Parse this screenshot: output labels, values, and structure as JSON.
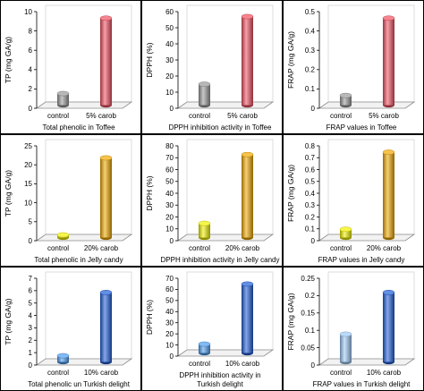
{
  "chart_data": [
    {
      "type": "bar",
      "title": "Total phenolic in Toffee",
      "ylabel": "TP (mg GA/g)",
      "categories": [
        "control",
        "5% carob"
      ],
      "values": [
        1.2,
        9.0
      ],
      "ylim": [
        0,
        10
      ],
      "yticks": [
        0,
        2,
        4,
        6,
        8,
        10
      ],
      "colors": [
        "#9a9a9a",
        "#f05060"
      ],
      "caption": [
        "Total phenolic in Toffee"
      ]
    },
    {
      "type": "bar",
      "title": "DPPH inhibition activity in Toffee",
      "ylabel": "DPPH (%)",
      "categories": [
        "control",
        "5% carob"
      ],
      "values": [
        13,
        55
      ],
      "ylim": [
        0,
        60
      ],
      "yticks": [
        0,
        10,
        20,
        30,
        40,
        50,
        60
      ],
      "colors": [
        "#9a9a9a",
        "#f05060"
      ],
      "caption": [
        "DPPH inhibition activity in Toffee"
      ]
    },
    {
      "type": "bar",
      "title": "FRAP values in Toffee",
      "ylabel": "FRAP (mg GA/g)",
      "categories": [
        "control",
        "5% carob"
      ],
      "values": [
        0.05,
        0.45
      ],
      "ylim": [
        0,
        0.5
      ],
      "yticks": [
        0,
        0.1,
        0.2,
        0.3,
        0.4,
        0.5
      ],
      "colors": [
        "#9a9a9a",
        "#f05060"
      ],
      "caption": [
        "FRAP values in Toffee"
      ]
    },
    {
      "type": "bar",
      "title": "Total phenolic in Jelly candy",
      "ylabel": "TP (mg GA/g)",
      "categories": [
        "control",
        "20% carob"
      ],
      "values": [
        0.7,
        21
      ],
      "ylim": [
        0,
        25
      ],
      "yticks": [
        0,
        5,
        10,
        15,
        20,
        25
      ],
      "colors": [
        "#f0f000",
        "#f0a800"
      ],
      "caption": [
        "Total phenolic in Jelly candy"
      ]
    },
    {
      "type": "bar",
      "title": "DPPH inhibition activity in Jelly candy",
      "ylabel": "DPPH (%)",
      "categories": [
        "control",
        "20% carob"
      ],
      "values": [
        12,
        70
      ],
      "ylim": [
        0,
        80
      ],
      "yticks": [
        0,
        10,
        20,
        30,
        40,
        50,
        60,
        70,
        80
      ],
      "colors": [
        "#f0f000",
        "#f0a800"
      ],
      "caption": [
        "DPPH inhibition activity in Jelly candy"
      ]
    },
    {
      "type": "bar",
      "title": "FRAP values in Jelly candy",
      "ylabel": "FRAP (mg GA/g)",
      "categories": [
        "control",
        "20% carob"
      ],
      "values": [
        0.07,
        0.72
      ],
      "ylim": [
        0,
        0.8
      ],
      "yticks": [
        0,
        0.1,
        0.2,
        0.3,
        0.4,
        0.5,
        0.6,
        0.7,
        0.8
      ],
      "colors": [
        "#f0f000",
        "#f0a800"
      ],
      "caption": [
        "FRAP values in Jelly candy"
      ]
    },
    {
      "type": "bar",
      "title": "Total phenolic un Turkish delight",
      "ylabel": "TP (mg GA/g)",
      "categories": [
        "control",
        "10% carob"
      ],
      "values": [
        0.5,
        5.6
      ],
      "ylim": [
        0,
        7
      ],
      "yticks": [
        0,
        1,
        2,
        3,
        4,
        5,
        6,
        7
      ],
      "colors": [
        "#4d9df0",
        "#1f5ed8"
      ],
      "caption": [
        "Total phenolic un Turkish delight"
      ]
    },
    {
      "type": "bar",
      "title": "DPPH inhibition activity in Turkish delight",
      "ylabel": "DPPH (%)",
      "categories": [
        "control",
        "10% carob"
      ],
      "values": [
        8,
        62
      ],
      "ylim": [
        0,
        70
      ],
      "yticks": [
        0,
        10,
        20,
        30,
        40,
        50,
        60,
        70
      ],
      "colors": [
        "#4d9df0",
        "#1f5ed8"
      ],
      "caption": [
        "DPPH inhibition activity in",
        "Turkish delight"
      ]
    },
    {
      "type": "bar",
      "title": "FRAP values in Turkish delight",
      "ylabel": "FRAP (mg GA/g)",
      "categories": [
        "control",
        "10% carob"
      ],
      "values": [
        0.08,
        0.2
      ],
      "ylim": [
        0,
        0.25
      ],
      "yticks": [
        0,
        0.05,
        0.1,
        0.15,
        0.2,
        0.25
      ],
      "colors": [
        "#9ec8f5",
        "#1f5ed8"
      ],
      "caption": [
        "FRAP values in Turkish delight"
      ]
    }
  ]
}
